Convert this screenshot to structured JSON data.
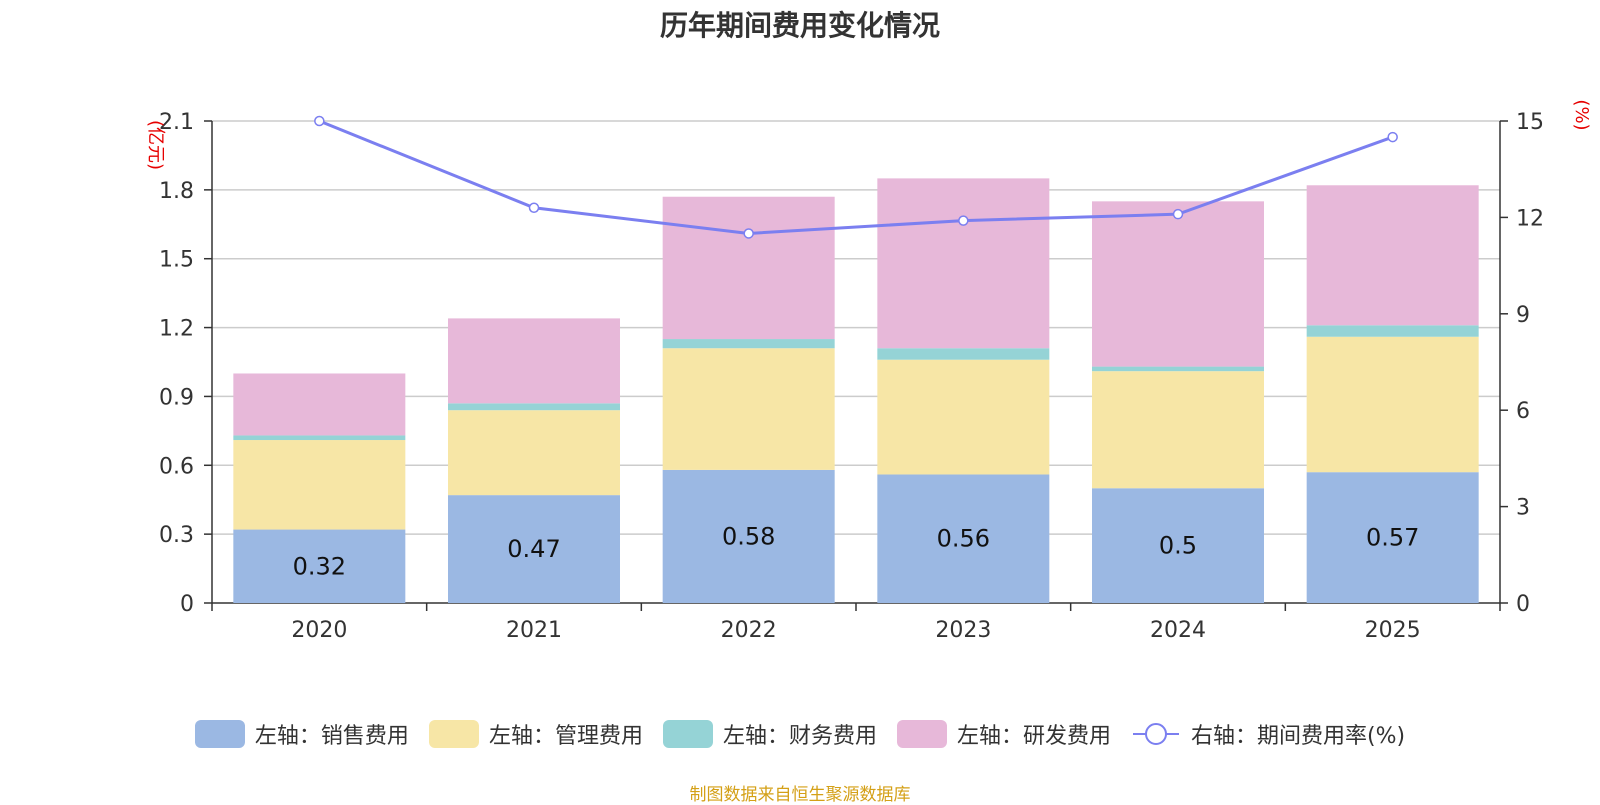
{
  "chart_data": {
    "type": "bar",
    "title": "历年期间费用变化情况",
    "categories": [
      "2020",
      "2021",
      "2022",
      "2023",
      "2024",
      "2025"
    ],
    "series": [
      {
        "name": "左轴：销售费用",
        "axis": "left",
        "color": "#9bb8e3",
        "values": [
          0.32,
          0.47,
          0.58,
          0.56,
          0.5,
          0.57
        ],
        "labels": [
          "0.32",
          "0.47",
          "0.58",
          "0.56",
          "0.5",
          "0.57"
        ]
      },
      {
        "name": "左轴：管理费用",
        "axis": "left",
        "color": "#f7e6a6",
        "values": [
          0.39,
          0.37,
          0.53,
          0.5,
          0.51,
          0.59
        ]
      },
      {
        "name": "左轴：财务费用",
        "axis": "left",
        "color": "#95d3d6",
        "values": [
          0.02,
          0.03,
          0.04,
          0.05,
          0.02,
          0.05
        ]
      },
      {
        "name": "左轴：研发费用",
        "axis": "left",
        "color": "#e7b8d9",
        "values": [
          0.27,
          0.37,
          0.62,
          0.74,
          0.72,
          0.61
        ]
      },
      {
        "name": "右轴：期间费用率(%)",
        "axis": "right",
        "type": "line",
        "color": "#7b7ff0",
        "values": [
          15.0,
          12.3,
          11.5,
          11.9,
          12.1,
          14.5
        ]
      }
    ],
    "left_axis": {
      "label": "(亿元)",
      "min": 0,
      "max": 2.1,
      "ticks": [
        "0",
        "0.3",
        "0.6",
        "0.9",
        "1.2",
        "1.5",
        "1.8",
        "2.1"
      ]
    },
    "right_axis": {
      "label": "(%)",
      "min": 0,
      "max": 15,
      "ticks": [
        "0",
        "3",
        "6",
        "9",
        "12",
        "15"
      ]
    },
    "grid": true,
    "legend_position": "bottom"
  },
  "footer": {
    "source": "制图数据来自恒生聚源数据库"
  }
}
